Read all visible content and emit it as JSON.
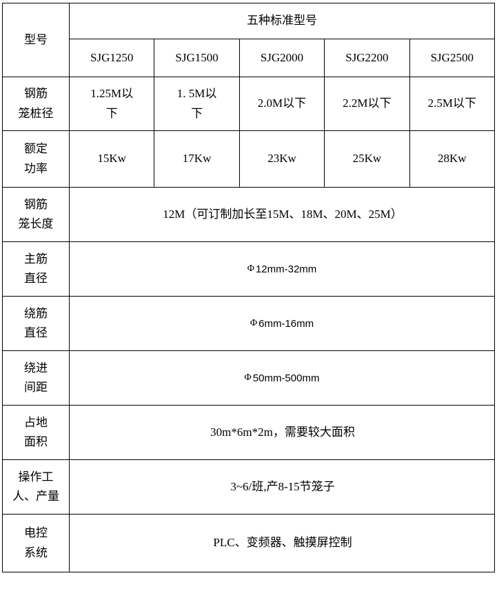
{
  "table": {
    "header": {
      "model_label": "型号",
      "group_label": "五种标准型号",
      "models": [
        "SJG1250",
        "SJG1500",
        "SJG2000",
        "SJG2200",
        "SJG2500"
      ]
    },
    "spec_rows": [
      {
        "label": "钢筋\n笼桩径",
        "values": [
          "1.25M以\n下",
          "1. 5M以\n下",
          "2.0M以下",
          "2.2M以下",
          "2.5M以下"
        ]
      },
      {
        "label": "额定\n功率",
        "values": [
          "15Kw",
          "17Kw",
          "23Kw",
          "25Kw",
          "28Kw"
        ]
      }
    ],
    "merged_rows": [
      {
        "label": "钢筋\n笼长度",
        "phi": "",
        "value": "12M（可订制加长至15M、18M、20M、25M）"
      },
      {
        "label": "主筋\n直径",
        "phi": "Φ",
        "value": "12mm-32mm"
      },
      {
        "label": "绕筋\n直径",
        "phi": "Φ",
        "value": "6mm-16mm"
      },
      {
        "label": "绕进\n间距",
        "phi": "Φ",
        "value": "50mm-500mm"
      },
      {
        "label": "占地\n面积",
        "phi": "",
        "value": "30m*6m*2m，需要较大面积"
      },
      {
        "label": "操作工\n人、产量",
        "phi": "",
        "value": "3~6/班,产8-15节笼子"
      },
      {
        "label": "电控\n系统",
        "phi": "",
        "value": "PLC、变频器、触摸屏控制"
      }
    ]
  },
  "colors": {
    "border": "#000000",
    "text": "#000000",
    "background": "#ffffff"
  }
}
